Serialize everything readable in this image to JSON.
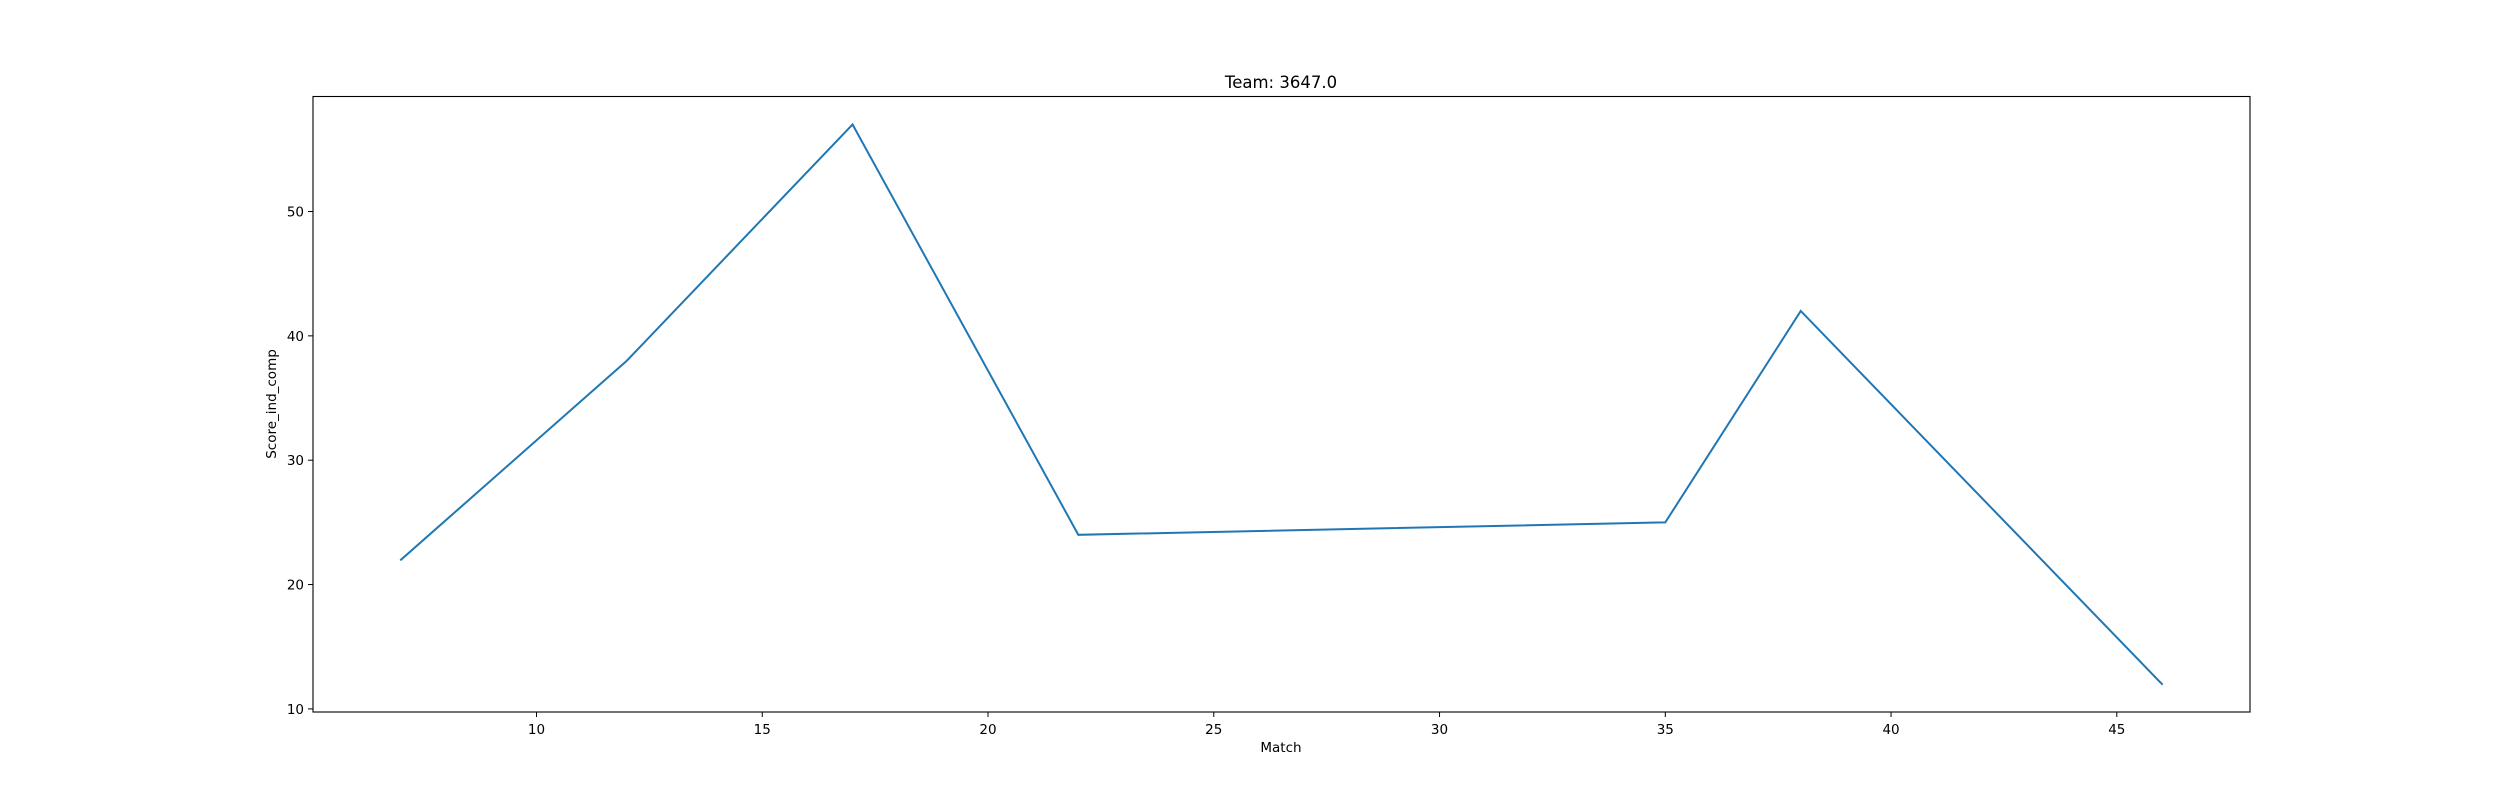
{
  "chart_data": {
    "type": "line",
    "title": "Team: 3647.0",
    "xlabel": "Match",
    "ylabel": "Score_ind_comp",
    "series": [
      {
        "name": "",
        "color": "#1f77b4",
        "x": [
          7,
          12,
          17,
          22,
          35,
          38,
          46
        ],
        "y": [
          22,
          38,
          57,
          24,
          25,
          42,
          12
        ]
      }
    ],
    "xlim": [
      5.05,
      47.95
    ],
    "ylim": [
      9.75,
      59.25
    ],
    "xticks": [
      10,
      15,
      20,
      25,
      30,
      35,
      40,
      45
    ],
    "yticks": [
      10,
      20,
      30,
      40,
      50
    ],
    "grid": false,
    "legend": "none"
  }
}
